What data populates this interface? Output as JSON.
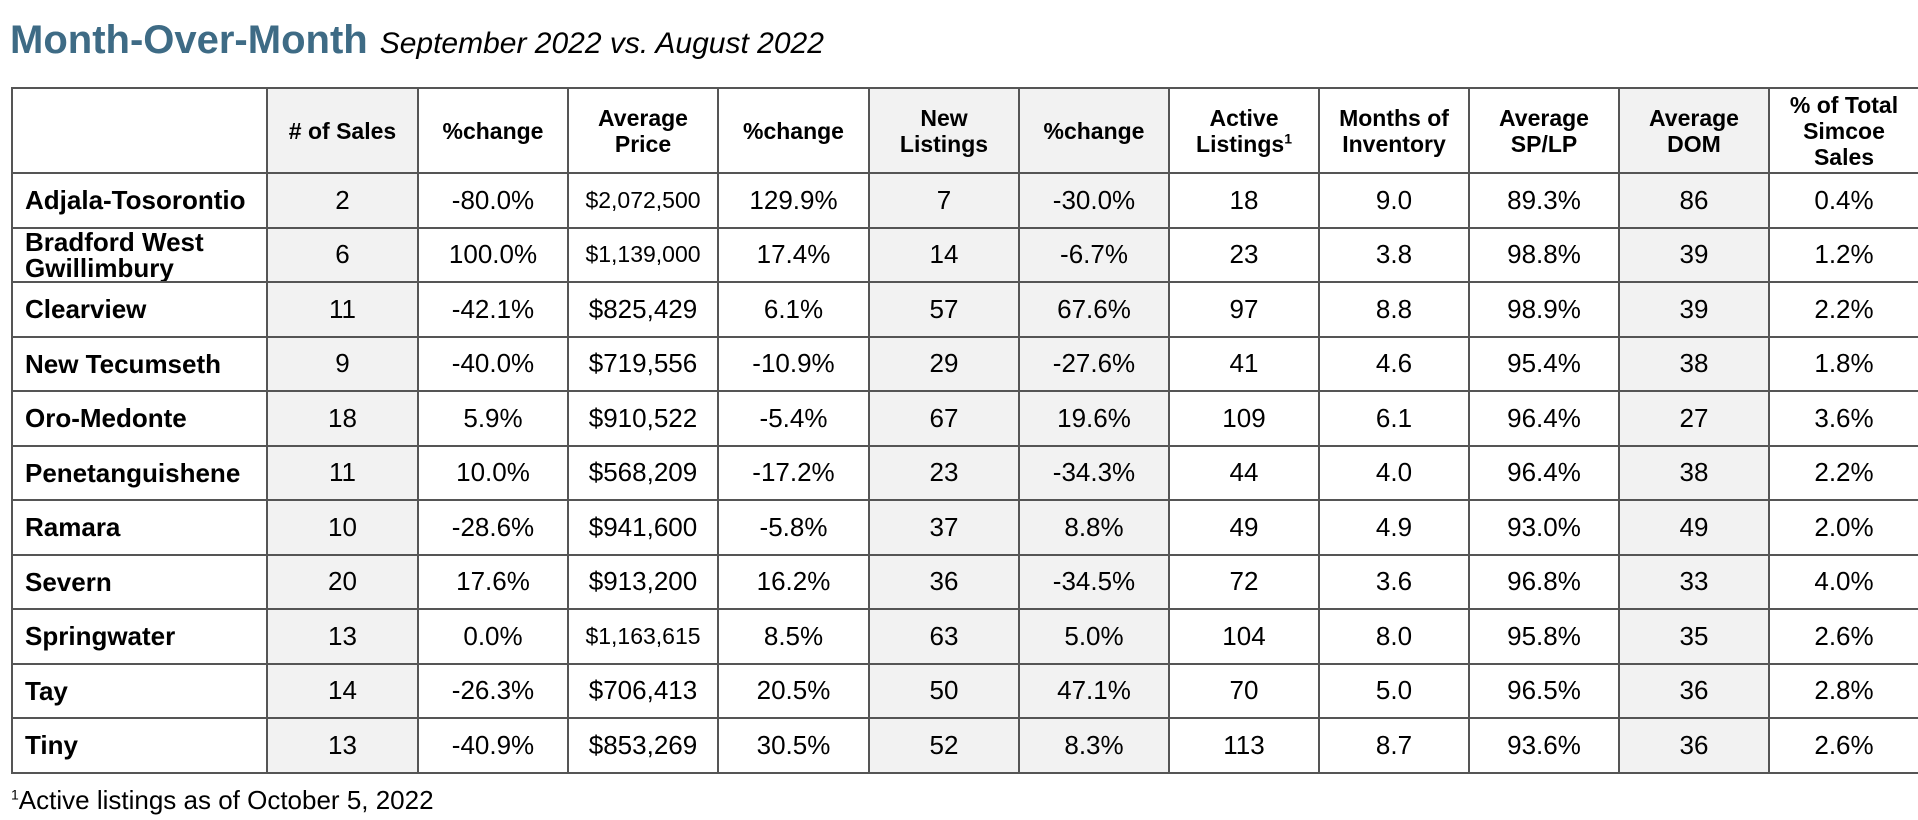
{
  "title": "Month-Over-Month",
  "subtitle": "September 2022 vs. August 2022",
  "columns": [
    "# of Sales",
    "%change",
    "Average Price",
    "%change",
    "New Listings",
    "%change",
    "Active Listings",
    "Months of Inventory",
    "Average SP/LP",
    "Average DOM",
    "% of Total Simcoe Sales"
  ],
  "active_listings_marker": "1",
  "rows": [
    {
      "name": "Adjala-Tosorontio",
      "sales": "2",
      "sales_change": "-80.0%",
      "avg_price": "$2,072,500",
      "price_change": "129.9%",
      "new_listings": "7",
      "listings_change": "-30.0%",
      "active": "18",
      "months_inventory": "9.0",
      "sp_lp": "89.3%",
      "dom": "86",
      "pct_total": "0.4%"
    },
    {
      "name": "Bradford West Gwillimbury",
      "sales": "6",
      "sales_change": "100.0%",
      "avg_price": "$1,139,000",
      "price_change": "17.4%",
      "new_listings": "14",
      "listings_change": "-6.7%",
      "active": "23",
      "months_inventory": "3.8",
      "sp_lp": "98.8%",
      "dom": "39",
      "pct_total": "1.2%"
    },
    {
      "name": "Clearview",
      "sales": "11",
      "sales_change": "-42.1%",
      "avg_price": "$825,429",
      "price_change": "6.1%",
      "new_listings": "57",
      "listings_change": "67.6%",
      "active": "97",
      "months_inventory": "8.8",
      "sp_lp": "98.9%",
      "dom": "39",
      "pct_total": "2.2%"
    },
    {
      "name": "New Tecumseth",
      "sales": "9",
      "sales_change": "-40.0%",
      "avg_price": "$719,556",
      "price_change": "-10.9%",
      "new_listings": "29",
      "listings_change": "-27.6%",
      "active": "41",
      "months_inventory": "4.6",
      "sp_lp": "95.4%",
      "dom": "38",
      "pct_total": "1.8%"
    },
    {
      "name": "Oro-Medonte",
      "sales": "18",
      "sales_change": "5.9%",
      "avg_price": "$910,522",
      "price_change": "-5.4%",
      "new_listings": "67",
      "listings_change": "19.6%",
      "active": "109",
      "months_inventory": "6.1",
      "sp_lp": "96.4%",
      "dom": "27",
      "pct_total": "3.6%"
    },
    {
      "name": "Penetanguishene",
      "sales": "11",
      "sales_change": "10.0%",
      "avg_price": "$568,209",
      "price_change": "-17.2%",
      "new_listings": "23",
      "listings_change": "-34.3%",
      "active": "44",
      "months_inventory": "4.0",
      "sp_lp": "96.4%",
      "dom": "38",
      "pct_total": "2.2%"
    },
    {
      "name": "Ramara",
      "sales": "10",
      "sales_change": "-28.6%",
      "avg_price": "$941,600",
      "price_change": "-5.8%",
      "new_listings": "37",
      "listings_change": "8.8%",
      "active": "49",
      "months_inventory": "4.9",
      "sp_lp": "93.0%",
      "dom": "49",
      "pct_total": "2.0%"
    },
    {
      "name": "Severn",
      "sales": "20",
      "sales_change": "17.6%",
      "avg_price": "$913,200",
      "price_change": "16.2%",
      "new_listings": "36",
      "listings_change": "-34.5%",
      "active": "72",
      "months_inventory": "3.6",
      "sp_lp": "96.8%",
      "dom": "33",
      "pct_total": "4.0%"
    },
    {
      "name": "Springwater",
      "sales": "13",
      "sales_change": "0.0%",
      "avg_price": "$1,163,615",
      "price_change": "8.5%",
      "new_listings": "63",
      "listings_change": "5.0%",
      "active": "104",
      "months_inventory": "8.0",
      "sp_lp": "95.8%",
      "dom": "35",
      "pct_total": "2.6%"
    },
    {
      "name": "Tay",
      "sales": "14",
      "sales_change": "-26.3%",
      "avg_price": "$706,413",
      "price_change": "20.5%",
      "new_listings": "50",
      "listings_change": "47.1%",
      "active": "70",
      "months_inventory": "5.0",
      "sp_lp": "96.5%",
      "dom": "36",
      "pct_total": "2.8%"
    },
    {
      "name": "Tiny",
      "sales": "13",
      "sales_change": "-40.9%",
      "avg_price": "$853,269",
      "price_change": "30.5%",
      "new_listings": "52",
      "listings_change": "8.3%",
      "active": "113",
      "months_inventory": "8.7",
      "sp_lp": "93.6%",
      "dom": "36",
      "pct_total": "2.6%"
    }
  ],
  "footnote": {
    "marker": "1",
    "text": "Active listings as of October 5, 2022"
  }
}
